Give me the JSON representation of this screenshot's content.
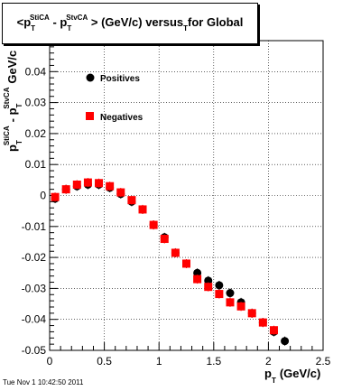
{
  "title": {
    "p": "p",
    "sup1": "StiCA",
    "sup2": "StvCA",
    "sub_t": "T",
    "open": "<",
    "minus": "- ",
    "rest": "> (GeV/c) versus",
    "sub_t2": "T",
    "tail": "for Global"
  },
  "ylabel": {
    "p": "p",
    "t": "T",
    "stica": "StiCA",
    "minus": "- p",
    "stvca": "StvCA",
    "unit": "GeV/c"
  },
  "xlabel": {
    "p": "p",
    "t": "T",
    "unit": "(GeV/c)"
  },
  "timestamp": "Tue Nov  1 10:42:50 2011",
  "chart_data": {
    "type": "scatter",
    "xlim": [
      0,
      2.5
    ],
    "ylim": [
      -0.05,
      0.05
    ],
    "xticks": [
      "0",
      "0.5",
      "1",
      "1.5",
      "2",
      "2.5"
    ],
    "yticks": [
      "-0.05",
      "-0.04",
      "-0.03",
      "-0.02",
      "-0.01",
      "0",
      "0.01",
      "0.02",
      "0.03",
      "0.04"
    ],
    "grid": true,
    "legend_placement": "upper-left inside",
    "series": [
      {
        "name": "Positives",
        "marker": "circle",
        "color": "#000000",
        "x": [
          0.05,
          0.15,
          0.25,
          0.35,
          0.45,
          0.55,
          0.65,
          0.75,
          0.85,
          0.95,
          1.05,
          1.15,
          1.25,
          1.35,
          1.45,
          1.55,
          1.65,
          1.75,
          1.85,
          1.95,
          2.05,
          2.15
        ],
        "y": [
          -0.001,
          0.002,
          0.003,
          0.0035,
          0.0035,
          0.0025,
          0.0005,
          -0.002,
          -0.0045,
          -0.0095,
          -0.0135,
          -0.0185,
          -0.022,
          -0.025,
          -0.0275,
          -0.029,
          -0.0315,
          -0.0345,
          -0.038,
          -0.041,
          -0.044,
          -0.047
        ]
      },
      {
        "name": "Negatives",
        "marker": "square",
        "color": "#ff0000",
        "x": [
          0.05,
          0.15,
          0.25,
          0.35,
          0.45,
          0.55,
          0.65,
          0.75,
          0.85,
          0.95,
          1.05,
          1.15,
          1.25,
          1.35,
          1.45,
          1.55,
          1.65,
          1.75,
          1.85,
          1.95,
          2.05
        ],
        "y": [
          -0.0005,
          0.002,
          0.0035,
          0.0042,
          0.004,
          0.003,
          0.001,
          -0.0015,
          -0.0045,
          -0.0095,
          -0.014,
          -0.0185,
          -0.022,
          -0.027,
          -0.0295,
          -0.0318,
          -0.0345,
          -0.0358,
          -0.038,
          -0.041,
          -0.0435
        ]
      }
    ]
  }
}
